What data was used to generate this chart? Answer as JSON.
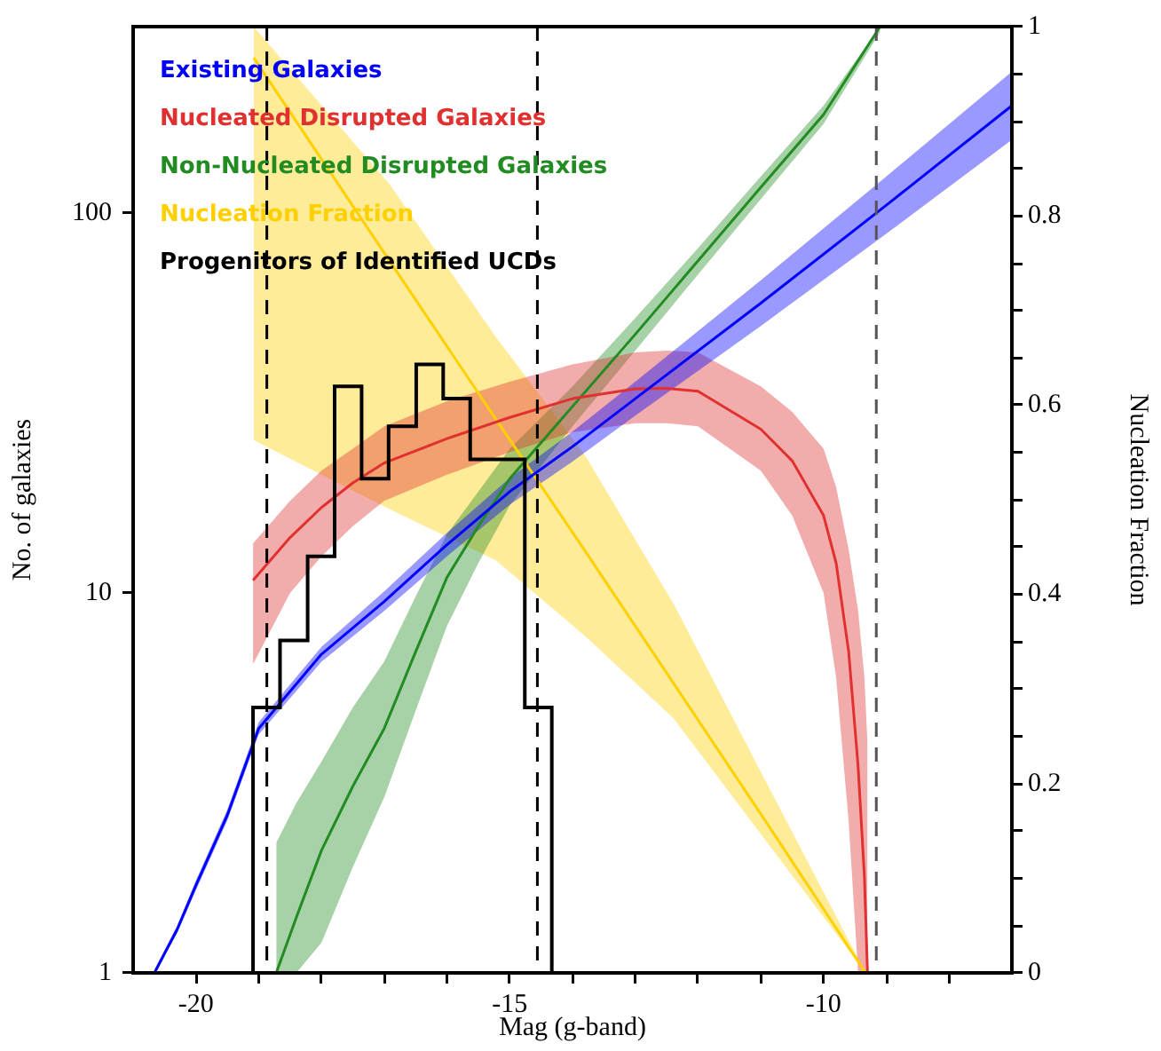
{
  "chart_data": {
    "type": "line",
    "xlabel": "Mag (g-band)",
    "ylabel": "No. of galaxies",
    "y2label": "Nucleation Fraction",
    "xlim": [
      -21,
      -7
    ],
    "xticks": [
      -20,
      {
        "value": -19,
        "label": null
      },
      {
        "value": -18,
        "label": null
      },
      {
        "value": -17,
        "label": null
      },
      {
        "value": -16,
        "label": null
      },
      -15,
      {
        "value": -14,
        "label": null
      },
      {
        "value": -13,
        "label": null
      },
      {
        "value": -12,
        "label": null
      },
      {
        "value": -11,
        "label": null
      },
      -10,
      {
        "value": -9,
        "label": null
      },
      {
        "value": -8,
        "label": null
      }
    ],
    "ylim": [
      1,
      310
    ],
    "yticks": [
      1,
      10,
      100
    ],
    "y2lim": [
      0,
      1
    ],
    "y2ticks": [
      0,
      {
        "value": 0.05,
        "label": null
      },
      {
        "value": 0.1,
        "label": null
      },
      {
        "value": 0.15,
        "label": null
      },
      0.2,
      {
        "value": 0.25,
        "label": null
      },
      {
        "value": 0.3,
        "label": null
      },
      {
        "value": 0.35,
        "label": null
      },
      0.4,
      {
        "value": 0.45,
        "label": null
      },
      {
        "value": 0.5,
        "label": null
      },
      {
        "value": 0.55,
        "label": null
      },
      0.6,
      {
        "value": 0.65,
        "label": null
      },
      {
        "value": 0.7,
        "label": null
      },
      {
        "value": 0.75,
        "label": null
      },
      0.8,
      {
        "value": 0.85,
        "label": null
      },
      {
        "value": 0.9,
        "label": null
      },
      {
        "value": 0.95,
        "label": null
      },
      1
    ],
    "log": "y",
    "legend": "top left",
    "ref_lines": [
      {
        "axis": "x",
        "value": -18.87,
        "color": "#000000",
        "line_style": "dashed"
      },
      {
        "axis": "x",
        "value": -14.56,
        "color": "#000000",
        "line_style": "dashed"
      },
      {
        "axis": "x",
        "value": -9.16,
        "color": "#555555",
        "line_style": "dashed"
      }
    ],
    "series": [
      {
        "name": "Existing Galaxies",
        "color": "#0000ff",
        "type": "line",
        "x": [
          -20.66,
          -20.3,
          -20,
          -19.5,
          -19,
          -18,
          -17,
          -16,
          -15,
          -14,
          -13,
          -11,
          -9,
          -7
        ],
        "values": [
          1,
          1.3,
          1.7,
          2.6,
          4.4,
          6.9,
          9.5,
          13.4,
          18.5,
          24.3,
          32.5,
          58,
          105,
          192
        ],
        "lower": [
          1,
          1.27,
          1.65,
          2.52,
          4.24,
          6.59,
          8.97,
          12.5,
          17.1,
          22.2,
          29.3,
          50.5,
          88.3,
          156
        ],
        "upper": [
          1.02,
          1.33,
          1.75,
          2.69,
          4.57,
          7.22,
          10.1,
          14.4,
          20.1,
          26.6,
          36,
          66.6,
          125,
          236
        ]
      },
      {
        "name": "Nucleated Disrupted Galaxies",
        "color": "#e03030",
        "type": "line",
        "x": [
          -19.09,
          -18.5,
          -18,
          -17.5,
          -17,
          -16,
          -15,
          -14,
          -13,
          -12.5,
          -12,
          -11,
          -10.5,
          -10,
          -9.8,
          -9.6,
          -9.45,
          -9.35,
          -9.3
        ],
        "values": [
          10.8,
          14,
          16.8,
          19.5,
          22,
          25.5,
          29,
          32.5,
          34.5,
          34.6,
          34,
          27,
          22.3,
          16,
          12,
          7,
          3.5,
          1.8,
          1
        ],
        "lower": [
          6.5,
          10,
          12.5,
          15,
          17.5,
          20.5,
          23.5,
          26.5,
          28,
          28,
          27.5,
          21,
          16,
          10,
          6,
          2.5,
          1,
          1,
          1
        ],
        "upper": [
          13.5,
          17.5,
          21,
          24,
          27.5,
          32,
          36,
          40,
          43,
          43.5,
          43,
          35,
          30,
          24,
          19,
          13,
          9,
          6,
          4
        ]
      },
      {
        "name": "Non-Nucleated Disrupted Galaxies",
        "color": "#228b22",
        "type": "line",
        "x": [
          -18.72,
          -18.4,
          -18,
          -17.5,
          -17,
          -16.5,
          -16,
          -15.5,
          -15,
          -14,
          -13,
          -12,
          -11,
          -10,
          -9.1
        ],
        "values": [
          1,
          1.4,
          2.1,
          3.1,
          4.4,
          7,
          11,
          15,
          20,
          31,
          48,
          75,
          117,
          182,
          310
        ],
        "lower": [
          1,
          1,
          1.2,
          1.9,
          2.9,
          4.9,
          8.2,
          12,
          17,
          27.5,
          43.5,
          69,
          109,
          172,
          300
        ],
        "upper": [
          2.2,
          2.8,
          3.6,
          5,
          6.6,
          9.8,
          14.3,
          18.5,
          24,
          35,
          53,
          81,
          125,
          192,
          310
        ]
      },
      {
        "name": "Nucleation Fraction",
        "color": "#ffd000",
        "type": "line",
        "axis": "y2",
        "x": [
          -19.08,
          -16.91,
          -15.22,
          -13.8,
          -12.39,
          -10.98,
          -9.33
        ],
        "values": [
          0.967,
          0.752,
          0.585,
          0.446,
          0.306,
          0.166,
          0
        ],
        "lower": [
          0.563,
          0.49,
          0.436,
          0.356,
          0.269,
          0.145,
          0
        ],
        "upper": [
          1,
          0.833,
          0.672,
          0.547,
          0.39,
          0.21,
          0
        ]
      },
      {
        "name": "Progenitors of Identified UCDs",
        "color": "#000000",
        "type": "histogram",
        "bins": [
          -19.09,
          -18.66,
          -18.22,
          -17.79,
          -17.36,
          -16.93,
          -16.49,
          -16.06,
          -15.63,
          -15.2,
          -14.76,
          -14.33
        ],
        "values": [
          5,
          7.5,
          12.5,
          35,
          20,
          27.5,
          40,
          32.5,
          22.5,
          22.5,
          5
        ]
      }
    ]
  }
}
